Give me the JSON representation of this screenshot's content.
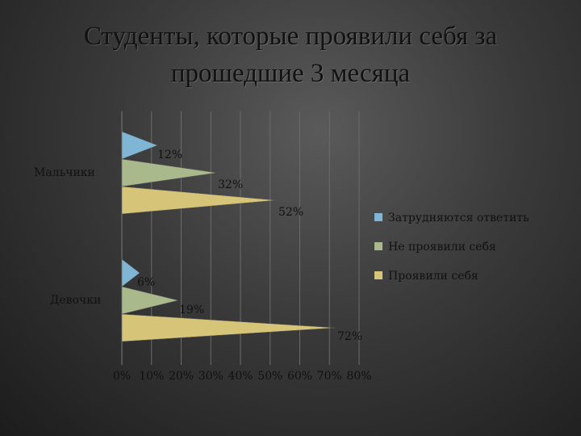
{
  "chart_data": {
    "type": "bar",
    "title_lines": [
      "Студенты, которые проявили себя за",
      "прошедшие 3 месяца"
    ],
    "categories": [
      "Мальчики",
      "Девочки"
    ],
    "series": [
      {
        "name": "Затрудняются ответить",
        "values": [
          0.12,
          0.06
        ],
        "labels": [
          "12%",
          "6%"
        ],
        "color": "#7fb6d6"
      },
      {
        "name": "Не проявили себя",
        "values": [
          0.32,
          0.19
        ],
        "labels": [
          "32%",
          "19%"
        ],
        "color": "#a9b98c"
      },
      {
        "name": "Проявили себя",
        "values": [
          0.52,
          0.72
        ],
        "labels": [
          "52%",
          "72%"
        ],
        "color": "#d6c578"
      }
    ],
    "xlim": [
      0,
      0.8
    ],
    "xticks": [
      "0%",
      "10%",
      "20%",
      "30%",
      "40%",
      "50%",
      "60%",
      "70%",
      "80%"
    ],
    "grid": true,
    "legend": "right",
    "bar_shape": "triangle"
  }
}
